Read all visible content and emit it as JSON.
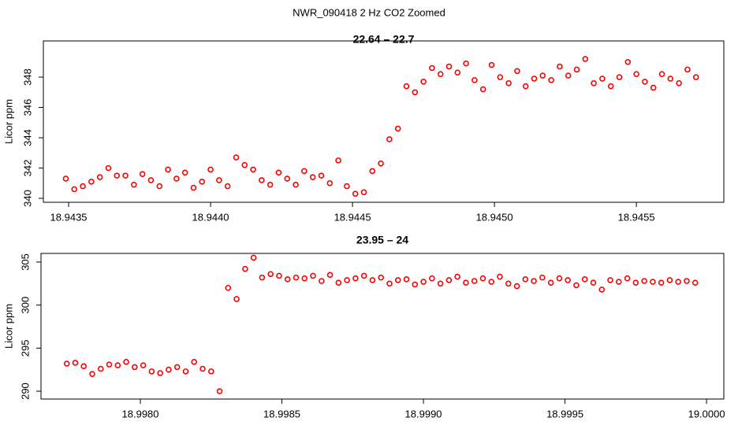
{
  "title": "NWR_090418  2 Hz CO2 Zoomed",
  "chart_data": [
    {
      "type": "scatter",
      "title": "22.64 – 22.7",
      "y_label": "Licor ppm",
      "color": "#ff0000",
      "xlim": [
        18.943411,
        18.945808
      ],
      "ylim": [
        339.74,
        350.39
      ],
      "xticks": [
        18.9435,
        {
          "value": 18.944,
          "label": "18.9440"
        },
        18.9445,
        {
          "value": 18.945,
          "label": "18.9450"
        },
        18.9455
      ],
      "yticks": [
        340,
        342,
        344,
        346,
        348
      ],
      "x": [
        18.94349,
        18.94352,
        18.94355,
        18.94358,
        18.94361,
        18.94364,
        18.94367,
        18.9437,
        18.94373,
        18.94376,
        18.94379,
        18.94382,
        18.94385,
        18.94388,
        18.94391,
        18.94394,
        18.94397,
        18.944,
        18.94403,
        18.94406,
        18.94409,
        18.94412,
        18.94415,
        18.94418,
        18.94421,
        18.94424,
        18.94427,
        18.9443,
        18.94433,
        18.94436,
        18.94439,
        18.94442,
        18.94445,
        18.94448,
        18.94451,
        18.94454,
        18.94457,
        18.9446,
        18.94463,
        18.94466,
        18.94469,
        18.94472,
        18.94475,
        18.94478,
        18.94481,
        18.94484,
        18.94487,
        18.9449,
        18.94493,
        18.94496,
        18.94499,
        18.94502,
        18.94505,
        18.94508,
        18.94511,
        18.94514,
        18.94517,
        18.9452,
        18.94523,
        18.94526,
        18.94529,
        18.94532,
        18.94535,
        18.94538,
        18.94541,
        18.94544,
        18.94547,
        18.9455,
        18.94553,
        18.94556,
        18.94559,
        18.94562,
        18.94565,
        18.94568,
        18.94571
      ],
      "values": [
        341.3,
        340.6,
        340.8,
        341.1,
        341.4,
        342.0,
        341.5,
        341.5,
        340.9,
        341.6,
        341.2,
        340.8,
        341.9,
        341.3,
        341.7,
        340.7,
        341.1,
        341.9,
        341.2,
        340.8,
        342.7,
        342.2,
        341.9,
        341.2,
        340.9,
        341.7,
        341.3,
        340.9,
        341.8,
        341.4,
        341.5,
        341.0,
        342.5,
        340.8,
        340.3,
        340.4,
        341.8,
        342.3,
        343.9,
        344.6,
        347.4,
        347.0,
        347.7,
        348.6,
        348.2,
        348.7,
        348.3,
        348.9,
        347.8,
        347.2,
        348.8,
        348.0,
        347.6,
        348.4,
        347.4,
        347.9,
        348.1,
        347.8,
        348.7,
        348.1,
        348.5,
        349.2,
        347.6,
        347.9,
        347.4,
        348.0,
        349.0,
        348.2,
        347.7,
        347.3,
        348.2,
        347.9,
        347.6,
        348.5,
        348.0
      ]
    },
    {
      "type": "scatter",
      "title": "23.95 – 24",
      "y_label": "Licor ppm",
      "color": "#ff0000",
      "xlim": [
        18.997649,
        19.000061
      ],
      "ylim": [
        289.09,
        306.0
      ],
      "xticks": [
        {
          "value": 18.998,
          "label": "18.9980"
        },
        18.9985,
        {
          "value": 18.999,
          "label": "18.9990"
        },
        18.9995,
        {
          "value": 19,
          "label": "19.0000"
        }
      ],
      "yticks": [
        290,
        295,
        300,
        305
      ],
      "x": [
        18.99774,
        18.99777,
        18.9978,
        18.99783,
        18.99786,
        18.99789,
        18.99792,
        18.99795,
        18.99798,
        18.99801,
        18.99804,
        18.99807,
        18.9981,
        18.99813,
        18.99816,
        18.99819,
        18.99822,
        18.99825,
        18.99828,
        18.99831,
        18.99834,
        18.99837,
        18.9984,
        18.99843,
        18.99846,
        18.99849,
        18.99852,
        18.99855,
        18.99858,
        18.99861,
        18.99864,
        18.99867,
        18.9987,
        18.99873,
        18.99876,
        18.99879,
        18.99882,
        18.99885,
        18.99888,
        18.99891,
        18.99894,
        18.99897,
        18.999,
        18.99903,
        18.99906,
        18.99909,
        18.99912,
        18.99915,
        18.99918,
        18.99921,
        18.99924,
        18.99927,
        18.9993,
        18.99933,
        18.99936,
        18.99939,
        18.99942,
        18.99945,
        18.99948,
        18.99951,
        18.99954,
        18.99957,
        18.9996,
        18.99963,
        18.99966,
        18.99969,
        18.99972,
        18.99975,
        18.99978,
        18.99981,
        18.99984,
        18.99987,
        18.9999,
        18.99993,
        18.99996
      ],
      "values": [
        293.2,
        293.3,
        292.9,
        292.0,
        292.6,
        293.1,
        293.0,
        293.4,
        292.8,
        293.0,
        292.3,
        292.1,
        292.5,
        292.8,
        292.3,
        293.4,
        292.6,
        292.3,
        290.0,
        302.0,
        300.7,
        304.2,
        305.5,
        303.2,
        303.6,
        303.4,
        303.0,
        303.2,
        303.1,
        303.4,
        302.8,
        303.5,
        302.6,
        302.9,
        303.1,
        303.4,
        302.9,
        303.2,
        302.5,
        302.9,
        303.0,
        302.4,
        302.7,
        303.1,
        302.5,
        302.9,
        303.3,
        302.6,
        302.8,
        303.1,
        302.7,
        303.3,
        302.5,
        302.2,
        303.0,
        302.8,
        303.2,
        302.6,
        303.1,
        302.9,
        302.3,
        303.0,
        302.6,
        301.8,
        302.9,
        302.7,
        303.1,
        302.6,
        302.8,
        302.7,
        302.6,
        302.9,
        302.7,
        302.8,
        302.6
      ]
    }
  ]
}
